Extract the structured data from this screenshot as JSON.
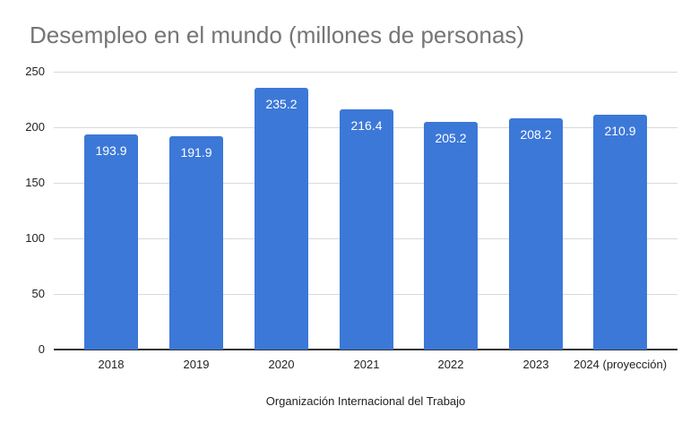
{
  "chart_data": {
    "type": "bar",
    "title": "Desempleo en el mundo (millones de personas)",
    "xlabel": "Organización Internacional del Trabajo",
    "ylabel": "",
    "categories": [
      "2018",
      "2019",
      "2020",
      "2021",
      "2022",
      "2023",
      "2024 (proyección)"
    ],
    "values": [
      193.9,
      191.9,
      235.2,
      216.4,
      205.2,
      208.2,
      210.9
    ],
    "value_labels": [
      "193.9",
      "191.9",
      "235.2",
      "216.4",
      "205.2",
      "208.2",
      "210.9"
    ],
    "ylim": [
      0,
      250
    ],
    "yticks": [
      "0",
      "50",
      "100",
      "150",
      "200",
      "250"
    ],
    "grid": true,
    "legend": "none",
    "bar_color": "#3c78d8"
  }
}
